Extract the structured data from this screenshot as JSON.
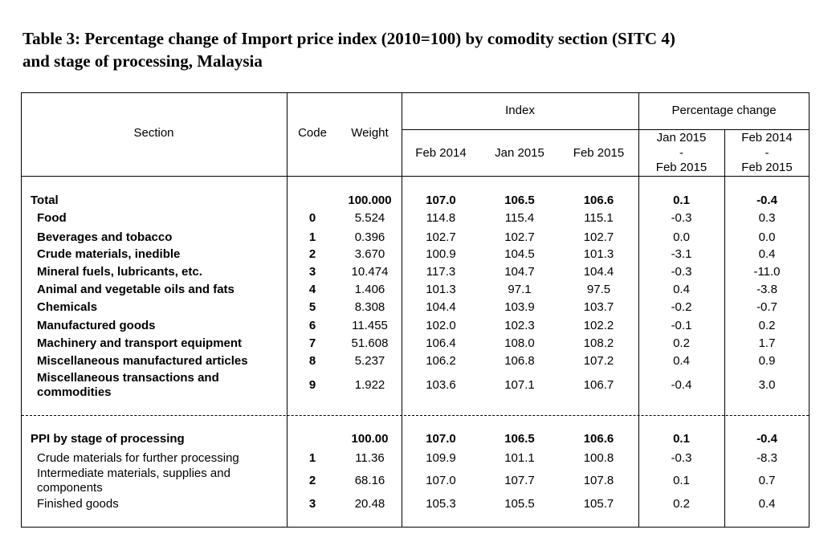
{
  "title": {
    "line1": "Table 3: Percentage change of Import price index (2010=100) by comodity section (SITC 4)",
    "line2": "and stage of processing, Malaysia"
  },
  "headers": {
    "section": "Section",
    "code": "Code",
    "weight": "Weight",
    "index": "Index",
    "pct_change": "Percentage change",
    "feb2014": "Feb 2014",
    "jan2015": "Jan 2015",
    "feb2015": "Feb 2015",
    "pc1_top": "Jan 2015",
    "pc1_dash": "-",
    "pc1_bottom": "Feb  2015",
    "pc2_top": "Feb 2014",
    "pc2_dash": "-",
    "pc2_bottom": "Feb 2015"
  },
  "section_rows": [
    {
      "label": "Total",
      "code": "",
      "weight": "100.000",
      "feb2014": "107.0",
      "jan2015": "106.5",
      "feb2015": "106.6",
      "pc1": "0.1",
      "pc2": "-0.4"
    },
    {
      "label": "Food",
      "code": "0",
      "weight": "5.524",
      "feb2014": "114.8",
      "jan2015": "115.4",
      "feb2015": "115.1",
      "pc1": "-0.3",
      "pc2": "0.3"
    },
    {
      "label": "Beverages and tobacco",
      "code": "1",
      "weight": "0.396",
      "feb2014": "102.7",
      "jan2015": "102.7",
      "feb2015": "102.7",
      "pc1": "0.0",
      "pc2": "0.0"
    },
    {
      "label": "Crude materials, inedible",
      "code": "2",
      "weight": "3.670",
      "feb2014": "100.9",
      "jan2015": "104.5",
      "feb2015": "101.3",
      "pc1": "-3.1",
      "pc2": "0.4"
    },
    {
      "label": "Mineral fuels, lubricants, etc.",
      "code": "3",
      "weight": "10.474",
      "feb2014": "117.3",
      "jan2015": "104.7",
      "feb2015": "104.4",
      "pc1": "-0.3",
      "pc2": "-11.0"
    },
    {
      "label": "Animal and vegetable oils and fats",
      "code": "4",
      "weight": "1.406",
      "feb2014": "101.3",
      "jan2015": "97.1",
      "feb2015": "97.5",
      "pc1": "0.4",
      "pc2": "-3.8"
    },
    {
      "label": "Chemicals",
      "code": "5",
      "weight": "8.308",
      "feb2014": "104.4",
      "jan2015": "103.9",
      "feb2015": "103.7",
      "pc1": "-0.2",
      "pc2": "-0.7"
    },
    {
      "label": "Manufactured goods",
      "code": "6",
      "weight": "11.455",
      "feb2014": "102.0",
      "jan2015": "102.3",
      "feb2015": "102.2",
      "pc1": "-0.1",
      "pc2": "0.2"
    },
    {
      "label": "Machinery and transport equipment",
      "code": "7",
      "weight": "51.608",
      "feb2014": "106.4",
      "jan2015": "108.0",
      "feb2015": "108.2",
      "pc1": "0.2",
      "pc2": "1.7"
    },
    {
      "label": "Miscellaneous manufactured articles",
      "code": "8",
      "weight": "5.237",
      "feb2014": "106.2",
      "jan2015": "106.8",
      "feb2015": "107.2",
      "pc1": "0.4",
      "pc2": "0.9"
    },
    {
      "label_line1": "Miscellaneous transactions and",
      "label_line2": "commodities",
      "code": "9",
      "weight": "1.922",
      "feb2014": "103.6",
      "jan2015": "107.1",
      "feb2015": "106.7",
      "pc1": "-0.4",
      "pc2": "3.0"
    }
  ],
  "ppi_rows": [
    {
      "label": "PPI by stage of processing",
      "code": "",
      "weight": "100.00",
      "feb2014": "107.0",
      "jan2015": "106.5",
      "feb2015": "106.6",
      "pc1": "0.1",
      "pc2": "-0.4"
    },
    {
      "label": "Crude materials for further processing",
      "code": "1",
      "weight": "11.36",
      "feb2014": "109.9",
      "jan2015": "101.1",
      "feb2015": "100.8",
      "pc1": "-0.3",
      "pc2": "-8.3"
    },
    {
      "label_line1": "Intermediate materials, supplies and",
      "label_line2": "components",
      "code": "2",
      "weight": "68.16",
      "feb2014": "107.0",
      "jan2015": "107.7",
      "feb2015": "107.8",
      "pc1": "0.1",
      "pc2": "0.7"
    },
    {
      "label": "Finished goods",
      "code": "3",
      "weight": "20.48",
      "feb2014": "105.3",
      "jan2015": "105.5",
      "feb2015": "105.7",
      "pc1": "0.2",
      "pc2": "0.4"
    }
  ]
}
